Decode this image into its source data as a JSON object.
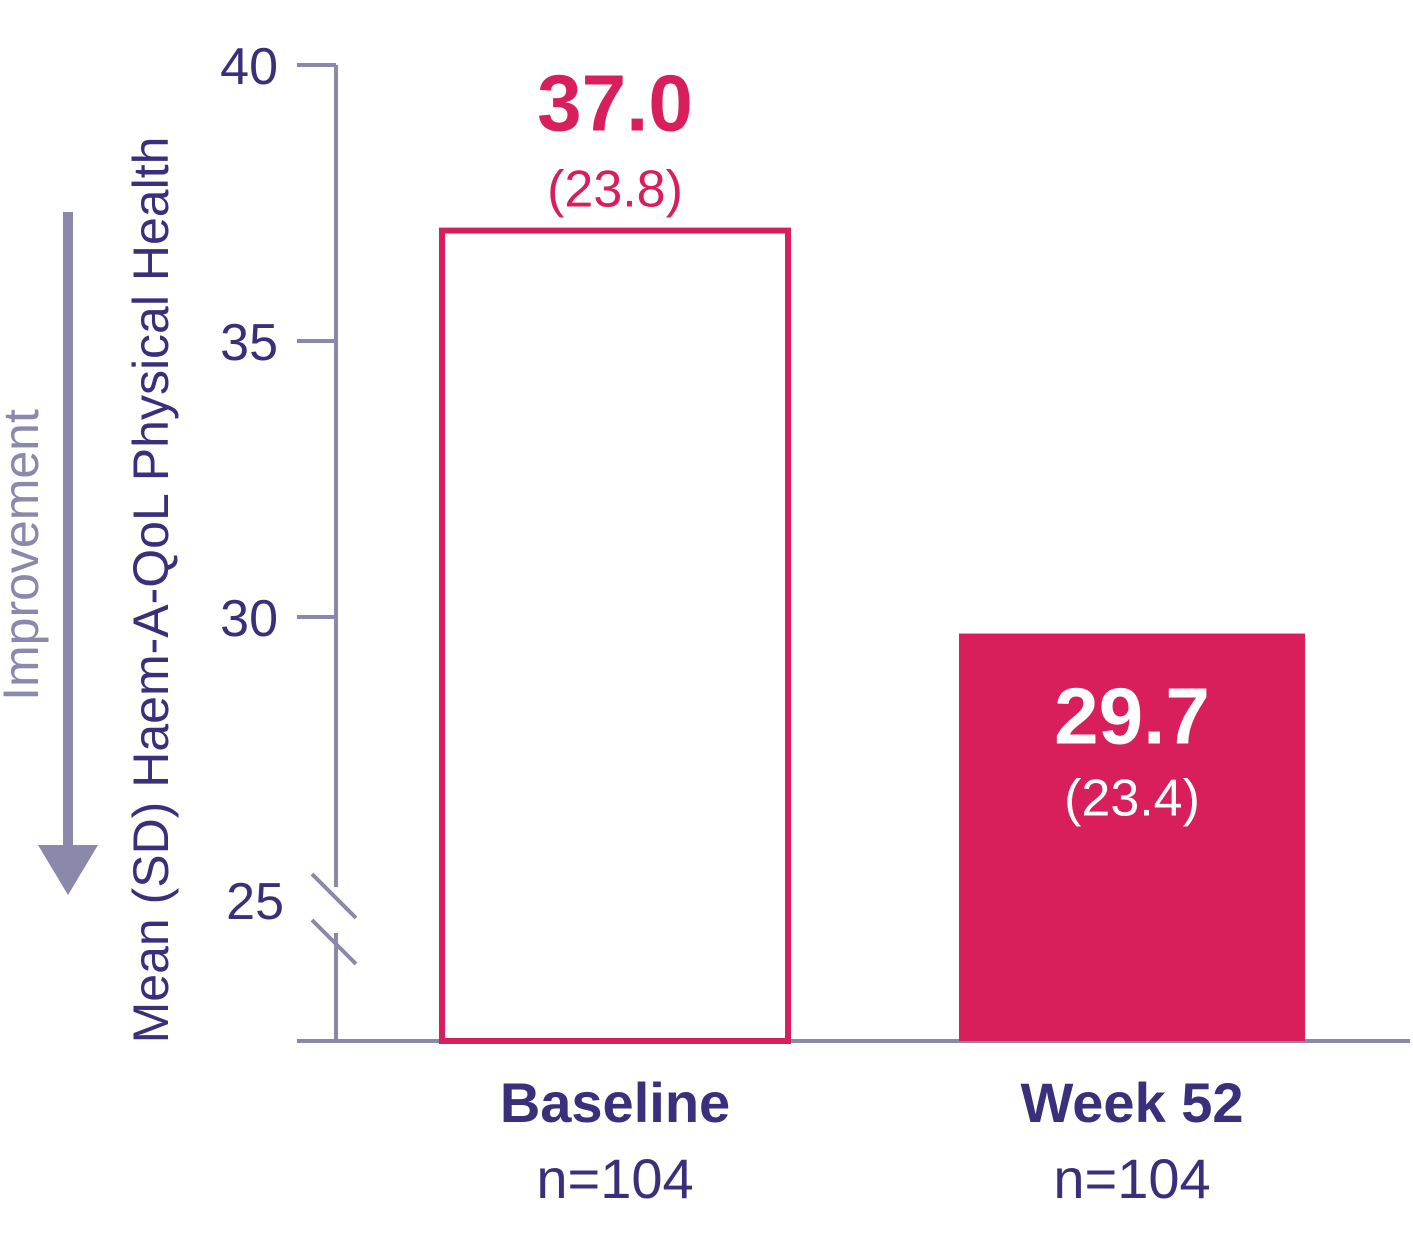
{
  "chart_data": {
    "type": "bar",
    "categories": [
      "Baseline",
      "Week 52"
    ],
    "n_labels": [
      "n=104",
      "n=104"
    ],
    "values": [
      37.0,
      29.7
    ],
    "value_labels": [
      "37.0",
      "29.7"
    ],
    "sd": [
      23.8,
      23.4
    ],
    "sd_labels": [
      "(23.8)",
      "(23.4)"
    ],
    "bar_styles": [
      "outline",
      "filled"
    ],
    "ylabel": "Mean (SD) Haem-A-QoL Physical Health",
    "yticks": [
      25,
      30,
      35,
      40
    ],
    "ytick_labels": [
      "25",
      "30",
      "35",
      "40"
    ],
    "ylim": [
      22.5,
      40
    ],
    "axis_break": true,
    "annotation": "Improvement",
    "annotation_direction": "down",
    "colors": {
      "bar": "#d81e5b",
      "axis": "#8a88ab",
      "text": "#3a2f7a",
      "arrow": "#8a88ab"
    }
  }
}
